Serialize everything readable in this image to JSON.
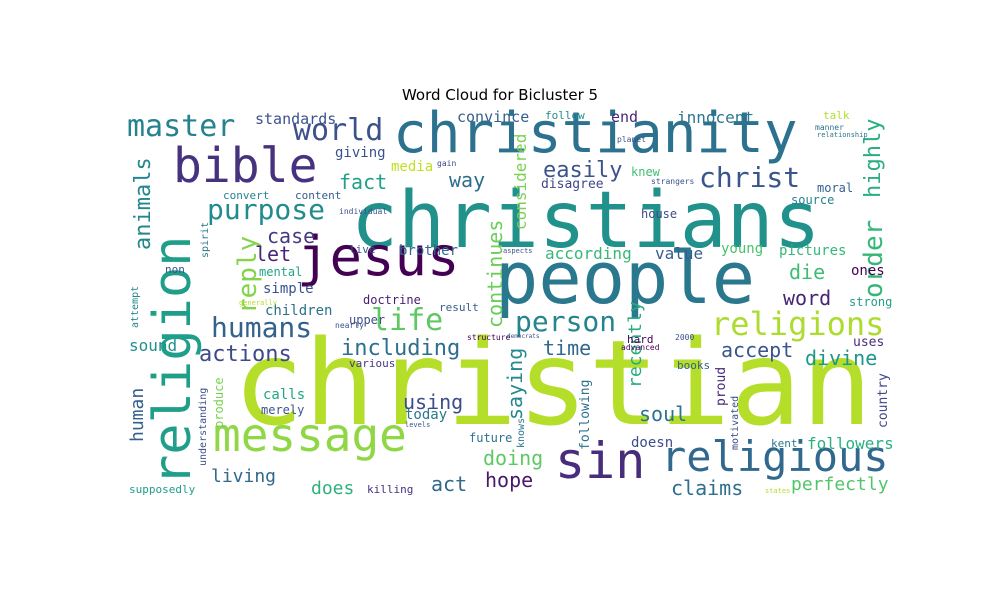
{
  "figure": {
    "title": "Word Cloud for Bicluster 5"
  },
  "chart_data": {
    "type": "wordcloud",
    "title": "Word Cloud for Bicluster 5",
    "colormap": "viridis",
    "words": [
      {
        "text": "christian",
        "size": 118,
        "color": "#b5de2b",
        "vertical": false
      },
      {
        "text": "christians",
        "size": 78,
        "color": "#21918c",
        "vertical": false
      },
      {
        "text": "people",
        "size": 72,
        "color": "#2a788e",
        "vertical": false
      },
      {
        "text": "christianity",
        "size": 56,
        "color": "#2c718e",
        "vertical": false
      },
      {
        "text": "jesus",
        "size": 54,
        "color": "#440154",
        "vertical": false
      },
      {
        "text": "religion",
        "size": 52,
        "color": "#1f9e89",
        "vertical": true
      },
      {
        "text": "sin",
        "size": 50,
        "color": "#472d7b",
        "vertical": false
      },
      {
        "text": "bible",
        "size": 48,
        "color": "#46327e",
        "vertical": false
      },
      {
        "text": "message",
        "size": 46,
        "color": "#8fd744",
        "vertical": false
      },
      {
        "text": "religious",
        "size": 42,
        "color": "#31688e",
        "vertical": false
      },
      {
        "text": "religions",
        "size": 32,
        "color": "#addc30",
        "vertical": false
      },
      {
        "text": "master",
        "size": 30,
        "color": "#26828e",
        "vertical": false
      },
      {
        "text": "world",
        "size": 30,
        "color": "#3b528b",
        "vertical": false
      },
      {
        "text": "person",
        "size": 28,
        "color": "#25858e",
        "vertical": false
      },
      {
        "text": "humans",
        "size": 28,
        "color": "#33638d",
        "vertical": false
      },
      {
        "text": "christ",
        "size": 28,
        "color": "#39568c",
        "vertical": false
      },
      {
        "text": "purpose",
        "size": 28,
        "color": "#228c8d",
        "vertical": false
      },
      {
        "text": "life",
        "size": 30,
        "color": "#5ec962",
        "vertical": false
      },
      {
        "text": "order",
        "size": 26,
        "color": "#35b779",
        "vertical": true
      },
      {
        "text": "highly",
        "size": 22,
        "color": "#29af7f",
        "vertical": true
      },
      {
        "text": "reply",
        "size": 26,
        "color": "#84d44b",
        "vertical": true
      },
      {
        "text": "animals",
        "size": 22,
        "color": "#24868e",
        "vertical": true
      },
      {
        "text": "including",
        "size": 22,
        "color": "#2e6e8e",
        "vertical": false
      },
      {
        "text": "actions",
        "size": 22,
        "color": "#3e4989",
        "vertical": false
      },
      {
        "text": "continues",
        "size": 20,
        "color": "#6ccd5a",
        "vertical": true
      },
      {
        "text": "easily",
        "size": 22,
        "color": "#3b528b",
        "vertical": false
      },
      {
        "text": "way",
        "size": 20,
        "color": "#2f6c8e",
        "vertical": false
      },
      {
        "text": "fact",
        "size": 20,
        "color": "#1fa088",
        "vertical": false
      },
      {
        "text": "case",
        "size": 20,
        "color": "#443a83",
        "vertical": false
      },
      {
        "text": "let",
        "size": 20,
        "color": "#482677",
        "vertical": false
      },
      {
        "text": "word",
        "size": 20,
        "color": "#482475",
        "vertical": false
      },
      {
        "text": "die",
        "size": 20,
        "color": "#3fbc73",
        "vertical": false
      },
      {
        "text": "time",
        "size": 20,
        "color": "#31688e",
        "vertical": false
      },
      {
        "text": "accept",
        "size": 20,
        "color": "#39568c",
        "vertical": false
      },
      {
        "text": "divine",
        "size": 20,
        "color": "#1f968b",
        "vertical": false
      },
      {
        "text": "using",
        "size": 20,
        "color": "#3d4d8a",
        "vertical": false
      },
      {
        "text": "saying",
        "size": 20,
        "color": "#23898e",
        "vertical": true
      },
      {
        "text": "recently",
        "size": 18,
        "color": "#27ad81",
        "vertical": true
      },
      {
        "text": "soul",
        "size": 20,
        "color": "#2c728e",
        "vertical": false
      },
      {
        "text": "doing",
        "size": 20,
        "color": "#5ec962",
        "vertical": false
      },
      {
        "text": "act",
        "size": 20,
        "color": "#31688e",
        "vertical": false
      },
      {
        "text": "hope",
        "size": 20,
        "color": "#48186a",
        "vertical": false
      },
      {
        "text": "claims",
        "size": 20,
        "color": "#2e6f8e",
        "vertical": false
      },
      {
        "text": "living",
        "size": 18,
        "color": "#30698e",
        "vertical": false
      },
      {
        "text": "does",
        "size": 18,
        "color": "#2db27d",
        "vertical": false
      },
      {
        "text": "perfectly",
        "size": 18,
        "color": "#52c569",
        "vertical": false
      },
      {
        "text": "human",
        "size": 18,
        "color": "#34608d",
        "vertical": true
      },
      {
        "text": "followers",
        "size": 16,
        "color": "#2ab07f",
        "vertical": false
      },
      {
        "text": "value",
        "size": 16,
        "color": "#365d8d",
        "vertical": false
      },
      {
        "text": "according",
        "size": 16,
        "color": "#37b878",
        "vertical": false
      },
      {
        "text": "considered",
        "size": 16,
        "color": "#7ad151",
        "vertical": true
      },
      {
        "text": "innocent",
        "size": 16,
        "color": "#2a788e",
        "vertical": false
      },
      {
        "text": "convince",
        "size": 15,
        "color": "#355f8d",
        "vertical": false
      },
      {
        "text": "end",
        "size": 15,
        "color": "#482878",
        "vertical": false
      },
      {
        "text": "standards",
        "size": 15,
        "color": "#3b528b",
        "vertical": false
      },
      {
        "text": "giving",
        "size": 14,
        "color": "#3b528b",
        "vertical": false
      },
      {
        "text": "media",
        "size": 14,
        "color": "#c2df23",
        "vertical": false
      },
      {
        "text": "disagree",
        "size": 13,
        "color": "#3f4788",
        "vertical": false
      },
      {
        "text": "knew",
        "size": 12,
        "color": "#40bd72",
        "vertical": false
      },
      {
        "text": "moral",
        "size": 12,
        "color": "#33638d",
        "vertical": false
      },
      {
        "text": "source",
        "size": 12,
        "color": "#26828e",
        "vertical": false
      },
      {
        "text": "young",
        "size": 14,
        "color": "#4ac16d",
        "vertical": false
      },
      {
        "text": "pictures",
        "size": 14,
        "color": "#35b779",
        "vertical": false
      },
      {
        "text": "ones",
        "size": 14,
        "color": "#440154",
        "vertical": false
      },
      {
        "text": "strong",
        "size": 12,
        "color": "#1fa287",
        "vertical": false
      },
      {
        "text": "house",
        "size": 12,
        "color": "#3e4a89",
        "vertical": false
      },
      {
        "text": "brother",
        "size": 14,
        "color": "#31688e",
        "vertical": false
      },
      {
        "text": "sound",
        "size": 16,
        "color": "#21908d",
        "vertical": false
      },
      {
        "text": "simple",
        "size": 14,
        "color": "#3b528b",
        "vertical": false
      },
      {
        "text": "children",
        "size": 14,
        "color": "#2d708e",
        "vertical": false
      },
      {
        "text": "mental",
        "size": 12,
        "color": "#21a585",
        "vertical": false
      },
      {
        "text": "doctrine",
        "size": 12,
        "color": "#481d6f",
        "vertical": false
      },
      {
        "text": "upper",
        "size": 12,
        "color": "#3d4e8a",
        "vertical": false
      },
      {
        "text": "result",
        "size": 11,
        "color": "#365c8d",
        "vertical": false
      },
      {
        "text": "various",
        "size": 11,
        "color": "#453781",
        "vertical": false
      },
      {
        "text": "calls",
        "size": 14,
        "color": "#22a785",
        "vertical": false
      },
      {
        "text": "merely",
        "size": 12,
        "color": "#3a548c",
        "vertical": false
      },
      {
        "text": "today",
        "size": 14,
        "color": "#2a778e",
        "vertical": false
      },
      {
        "text": "future",
        "size": 12,
        "color": "#2d718e",
        "vertical": false
      },
      {
        "text": "doesn",
        "size": 14,
        "color": "#3e4c8a",
        "vertical": false
      },
      {
        "text": "books",
        "size": 11,
        "color": "#34608d",
        "vertical": false
      },
      {
        "text": "uses",
        "size": 13,
        "color": "#472c7a",
        "vertical": false
      },
      {
        "text": "country",
        "size": 13,
        "color": "#3f4889",
        "vertical": true
      },
      {
        "text": "kent",
        "size": 11,
        "color": "#2a788e",
        "vertical": false
      },
      {
        "text": "hard",
        "size": 11,
        "color": "#440154",
        "vertical": false
      },
      {
        "text": "killing",
        "size": 11,
        "color": "#46327e",
        "vertical": false
      },
      {
        "text": "supposedly",
        "size": 11,
        "color": "#1f9e89",
        "vertical": false
      },
      {
        "text": "following",
        "size": 13,
        "color": "#2c728e",
        "vertical": true
      },
      {
        "text": "proud",
        "size": 13,
        "color": "#482878",
        "vertical": true
      },
      {
        "text": "motivated",
        "size": 10,
        "color": "#3d4e8a",
        "vertical": true
      },
      {
        "text": "produce",
        "size": 12,
        "color": "#7ad151",
        "vertical": true
      },
      {
        "text": "understanding",
        "size": 10,
        "color": "#3d4e8a",
        "vertical": true
      },
      {
        "text": "knows",
        "size": 10,
        "color": "#2a788e",
        "vertical": true
      },
      {
        "text": "talk",
        "size": 11,
        "color": "#b5de2b",
        "vertical": false
      },
      {
        "text": "follow",
        "size": 11,
        "color": "#228c8d",
        "vertical": false
      },
      {
        "text": "convert",
        "size": 11,
        "color": "#25848e",
        "vertical": false
      },
      {
        "text": "content",
        "size": 11,
        "color": "#365c8d",
        "vertical": false
      },
      {
        "text": "live",
        "size": 11,
        "color": "#39568c",
        "vertical": false
      },
      {
        "text": "non",
        "size": 11,
        "color": "#3b528b",
        "vertical": false
      },
      {
        "text": "attempt",
        "size": 10,
        "color": "#24868e",
        "vertical": true
      },
      {
        "text": "spirit",
        "size": 10,
        "color": "#2a778e",
        "vertical": true
      },
      {
        "text": "individual",
        "size": 8,
        "color": "#3b528b",
        "vertical": false
      },
      {
        "text": "gain",
        "size": 8,
        "color": "#3e4989",
        "vertical": false
      },
      {
        "text": "planet",
        "size": 8,
        "color": "#3b528b",
        "vertical": false
      },
      {
        "text": "strangers",
        "size": 8,
        "color": "#3b528b",
        "vertical": false
      },
      {
        "text": "manner",
        "size": 8,
        "color": "#2c728e",
        "vertical": false
      },
      {
        "text": "relationship",
        "size": 7,
        "color": "#2c728e",
        "vertical": false
      },
      {
        "text": "aspects",
        "size": 7,
        "color": "#3b528b",
        "vertical": false
      },
      {
        "text": "generally",
        "size": 7,
        "color": "#b5de2b",
        "vertical": false
      },
      {
        "text": "nearly",
        "size": 8,
        "color": "#3b528b",
        "vertical": false
      },
      {
        "text": "structure",
        "size": 8,
        "color": "#440154",
        "vertical": false
      },
      {
        "text": "democrats",
        "size": 6,
        "color": "#3b528b",
        "vertical": false
      },
      {
        "text": "advanced",
        "size": 8,
        "color": "#440154",
        "vertical": false
      },
      {
        "text": "2000",
        "size": 8,
        "color": "#3b528b",
        "vertical": false
      },
      {
        "text": "levels",
        "size": 7,
        "color": "#3b528b",
        "vertical": false
      },
      {
        "text": "states",
        "size": 7,
        "color": "#b5de2b",
        "vertical": false
      }
    ]
  }
}
